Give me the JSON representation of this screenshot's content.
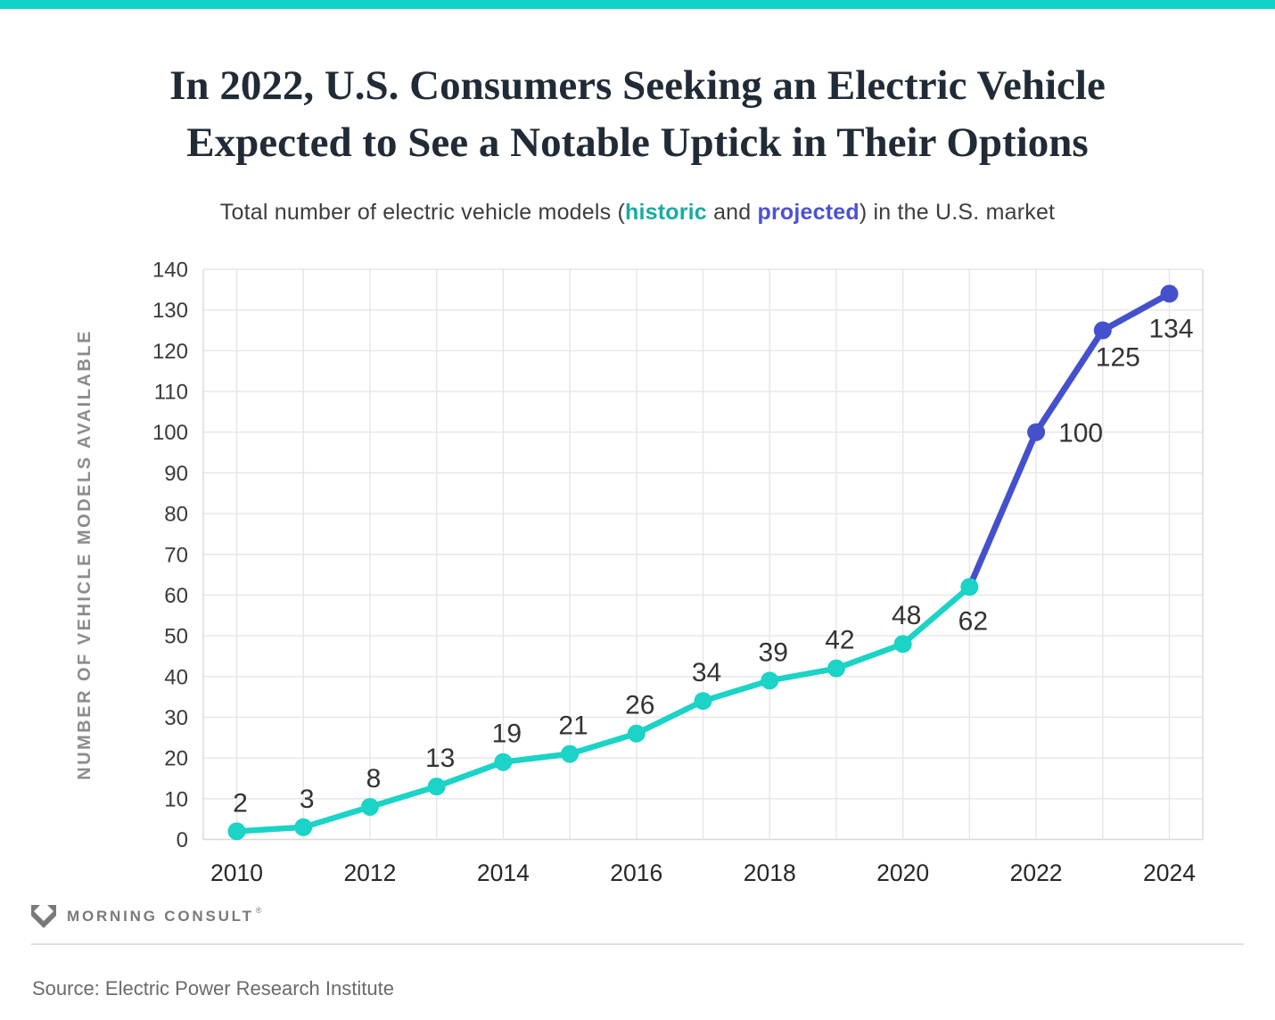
{
  "page": {
    "title": "In 2022, U.S. Consumers Seeking an Electric Vehicle\nExpected to See a Notable Uptick in Their Options",
    "subtitle": {
      "prefix": "Total number of electric vehicle models (",
      "historic_label": "historic",
      "and_text": " and ",
      "projected_label": "projected",
      "suffix": ") in the U.S. market"
    },
    "footer": {
      "brand": "MORNING CONSULT",
      "trademark": "®",
      "source": "Source: Electric Power Research Institute"
    }
  },
  "colors": {
    "top_bar": "#10D2C6",
    "historic_line": "#1BD3C6",
    "projected_line": "#4450CC",
    "historic_text": "#17ACA1",
    "projected_text": "#4A52D4",
    "title_text": "#202B36",
    "grid": "#E6E6E6",
    "axis_edge": "#D8D8D8",
    "x_tick_label": "#272727",
    "y_tick_label": "#3A3A3A",
    "data_label": "#333333",
    "axis_title": "#8C8C8C",
    "brand_gray": "#7A7A7A"
  },
  "chart_data": {
    "type": "line",
    "title": "In 2022, U.S. Consumers Seeking an Electric Vehicle Expected to See a Notable Uptick in Their Options",
    "subtitle": "Total number of electric vehicle models (historic and projected) in the U.S. market",
    "xlabel": "",
    "ylabel": "NUMBER OF VEHICLE MODELS AVAILABLE",
    "ylim": [
      0,
      140
    ],
    "ytick_step": 10,
    "x": [
      2010,
      2011,
      2012,
      2013,
      2014,
      2015,
      2016,
      2017,
      2018,
      2019,
      2020,
      2021,
      2022,
      2023,
      2024
    ],
    "x_ticks_labeled": [
      2010,
      2012,
      2014,
      2016,
      2018,
      2020,
      2022,
      2024
    ],
    "grid": true,
    "legend_position": "inline-in-subtitle",
    "series": [
      {
        "name": "historic",
        "color": "#1BD3C6",
        "years": [
          2010,
          2011,
          2012,
          2013,
          2014,
          2015,
          2016,
          2017,
          2018,
          2019,
          2020,
          2021
        ],
        "values": [
          2,
          3,
          8,
          13,
          19,
          21,
          26,
          34,
          39,
          42,
          48,
          62
        ]
      },
      {
        "name": "projected",
        "color": "#4450CC",
        "years": [
          2021,
          2022,
          2023,
          2024
        ],
        "values": [
          62,
          100,
          125,
          134
        ]
      }
    ]
  }
}
